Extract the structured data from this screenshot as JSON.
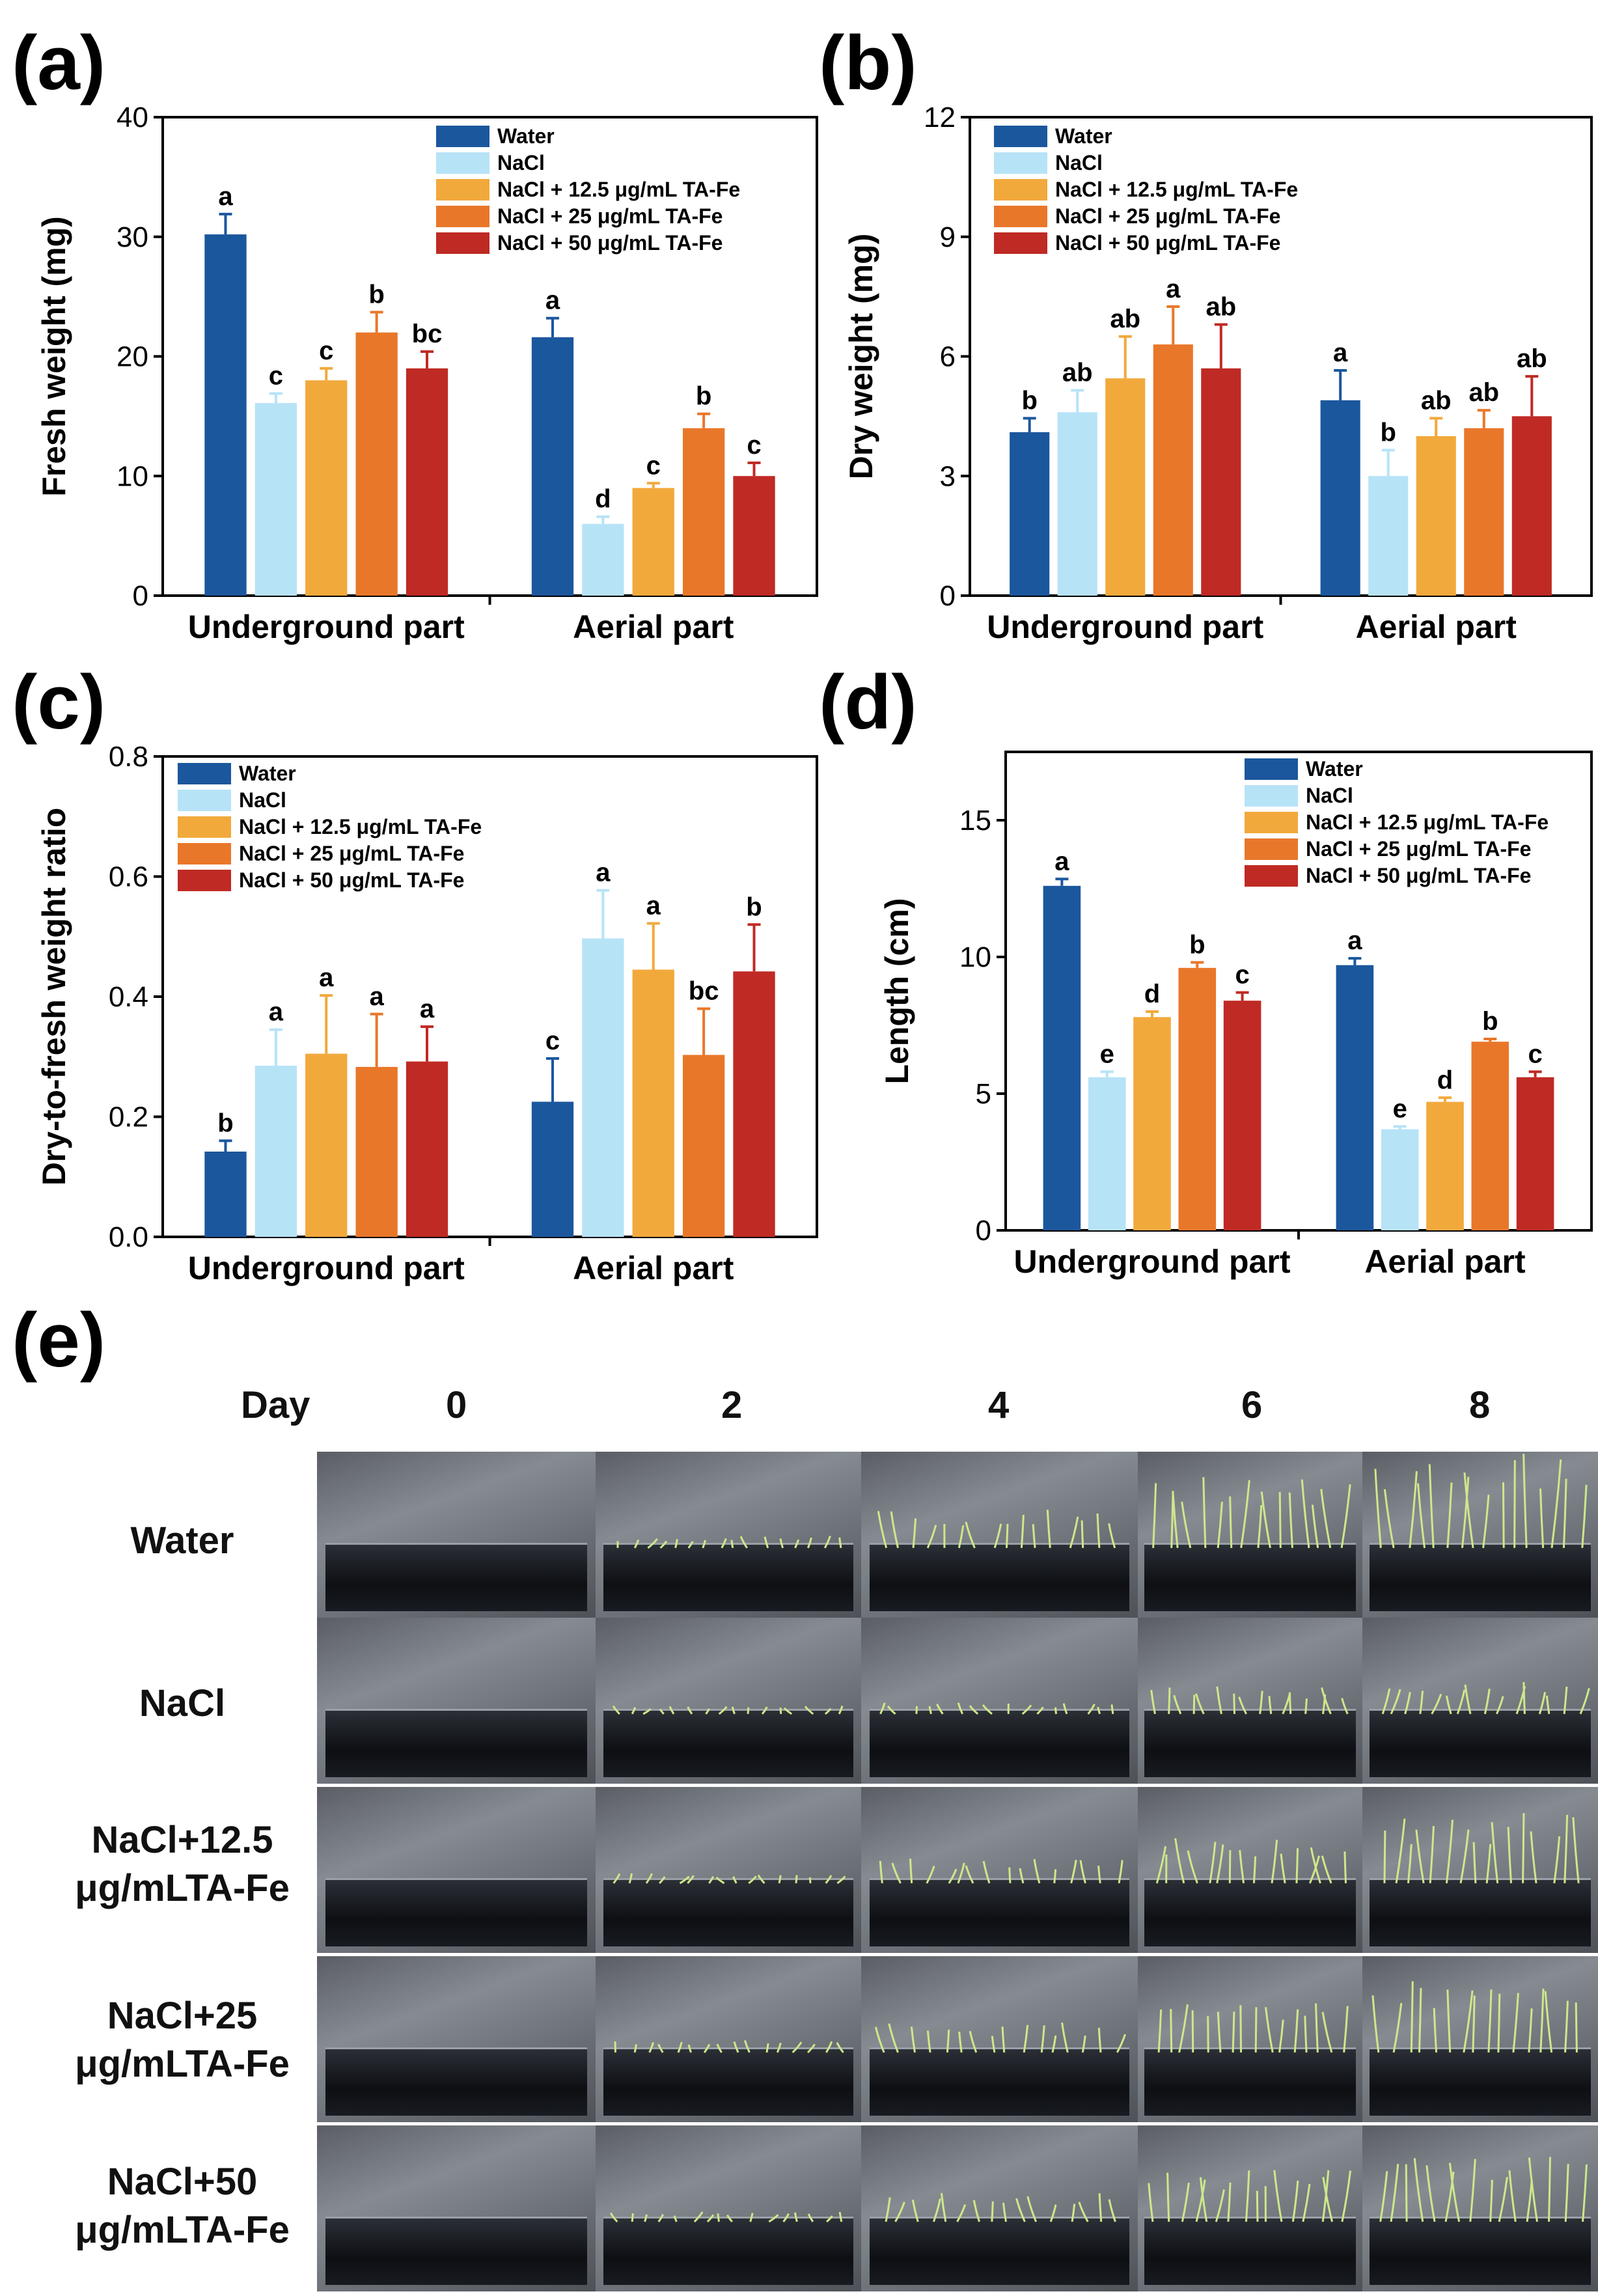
{
  "panel_labels": [
    "(a)",
    "(b)",
    "(c)",
    "(d)",
    "(e)"
  ],
  "legend": [
    {
      "name": "Water",
      "color": "#1b579d"
    },
    {
      "name": "NaCl",
      "color": "#b7e3f7"
    },
    {
      "name": "NaCl + 12.5 μg/mL TA-Fe",
      "color": "#f2a93c"
    },
    {
      "name": "NaCl + 25 μg/mL TA-Fe",
      "color": "#e9772a"
    },
    {
      "name": "NaCl + 50 μg/mL TA-Fe",
      "color": "#bf2a24"
    }
  ],
  "chart_data": [
    {
      "panel": "(a)",
      "type": "bar",
      "ylabel": "Fresh weight (mg)",
      "xlabel": "",
      "categories": [
        "Underground part",
        "Aerial part"
      ],
      "ylim": [
        0,
        40
      ],
      "yticks": [
        0,
        10,
        20,
        30,
        40
      ],
      "series": [
        {
          "name": "Water",
          "values": [
            30.2,
            21.6
          ],
          "errors": [
            1.7,
            1.6
          ],
          "letters": [
            "a",
            "a"
          ]
        },
        {
          "name": "NaCl",
          "values": [
            16.1,
            6.0
          ],
          "errors": [
            0.8,
            0.6
          ],
          "letters": [
            "c",
            "d"
          ]
        },
        {
          "name": "NaCl + 12.5 μg/mL TA-Fe",
          "values": [
            18.0,
            9.0
          ],
          "errors": [
            1.0,
            0.4
          ],
          "letters": [
            "c",
            "c"
          ]
        },
        {
          "name": "NaCl + 25 μg/mL TA-Fe",
          "values": [
            22.0,
            14.0
          ],
          "errors": [
            1.7,
            1.2
          ],
          "letters": [
            "b",
            "b"
          ]
        },
        {
          "name": "NaCl + 50 μg/mL TA-Fe",
          "values": [
            19.0,
            10.0
          ],
          "errors": [
            1.4,
            1.1
          ],
          "letters": [
            "bc",
            "c"
          ]
        }
      ]
    },
    {
      "panel": "(b)",
      "type": "bar",
      "ylabel": "Dry weight (mg)",
      "xlabel": "",
      "categories": [
        "Underground part",
        "Aerial part"
      ],
      "ylim": [
        0,
        12
      ],
      "yticks": [
        0,
        3,
        6,
        9,
        12
      ],
      "series": [
        {
          "name": "Water",
          "values": [
            4.1,
            4.9
          ],
          "errors": [
            0.35,
            0.75
          ],
          "letters": [
            "b",
            "a"
          ]
        },
        {
          "name": "NaCl",
          "values": [
            4.6,
            3.0
          ],
          "errors": [
            0.55,
            0.65
          ],
          "letters": [
            "ab",
            "b"
          ]
        },
        {
          "name": "NaCl + 12.5 μg/mL TA-Fe",
          "values": [
            5.45,
            4.0
          ],
          "errors": [
            1.05,
            0.45
          ],
          "letters": [
            "ab",
            "ab"
          ]
        },
        {
          "name": "NaCl + 25 μg/mL TA-Fe",
          "values": [
            6.3,
            4.2
          ],
          "errors": [
            0.95,
            0.45
          ],
          "letters": [
            "a",
            "ab"
          ]
        },
        {
          "name": "NaCl + 50 μg/mL TA-Fe",
          "values": [
            5.7,
            4.5
          ],
          "errors": [
            1.1,
            1.0
          ],
          "letters": [
            "ab",
            "ab"
          ]
        }
      ]
    },
    {
      "panel": "(c)",
      "type": "bar",
      "ylabel": "Dry-to-fresh weight ratio",
      "xlabel": "",
      "categories": [
        "Underground part",
        "Aerial part"
      ],
      "ylim": [
        0,
        0.8
      ],
      "yticks": [
        0.0,
        0.2,
        0.4,
        0.6,
        0.8
      ],
      "series": [
        {
          "name": "Water",
          "values": [
            0.142,
            0.225
          ],
          "errors": [
            0.018,
            0.072
          ],
          "letters": [
            "b",
            "c"
          ]
        },
        {
          "name": "NaCl",
          "values": [
            0.285,
            0.497
          ],
          "errors": [
            0.06,
            0.08
          ],
          "letters": [
            "a",
            "a"
          ]
        },
        {
          "name": "NaCl + 12.5 μg/mL TA-Fe",
          "values": [
            0.305,
            0.445
          ],
          "errors": [
            0.097,
            0.077
          ],
          "letters": [
            "a",
            "a"
          ]
        },
        {
          "name": "NaCl + 25 μg/mL TA-Fe",
          "values": [
            0.283,
            0.303
          ],
          "errors": [
            0.088,
            0.077
          ],
          "letters": [
            "a",
            "bc"
          ]
        },
        {
          "name": "NaCl + 50 μg/mL TA-Fe",
          "values": [
            0.292,
            0.442
          ],
          "errors": [
            0.058,
            0.078
          ],
          "letters": [
            "a",
            "b"
          ]
        }
      ]
    },
    {
      "panel": "(d)",
      "type": "bar",
      "ylabel": "Length (cm)",
      "xlabel": "",
      "categories": [
        "Underground part",
        "Aerial part"
      ],
      "ylim": [
        0,
        17.5
      ],
      "yticks": [
        0,
        5,
        10,
        15
      ],
      "series": [
        {
          "name": "Water",
          "values": [
            12.6,
            9.7
          ],
          "errors": [
            0.25,
            0.25
          ],
          "letters": [
            "a",
            "a"
          ]
        },
        {
          "name": "NaCl",
          "values": [
            5.6,
            3.7
          ],
          "errors": [
            0.2,
            0.1
          ],
          "letters": [
            "e",
            "e"
          ]
        },
        {
          "name": "NaCl + 12.5 μg/mL TA-Fe",
          "values": [
            7.8,
            4.7
          ],
          "errors": [
            0.2,
            0.15
          ],
          "letters": [
            "d",
            "d"
          ]
        },
        {
          "name": "NaCl + 25 μg/mL TA-Fe",
          "values": [
            9.6,
            6.9
          ],
          "errors": [
            0.2,
            0.1
          ],
          "letters": [
            "b",
            "b"
          ]
        },
        {
          "name": "NaCl + 50 μg/mL TA-Fe",
          "values": [
            8.4,
            5.6
          ],
          "errors": [
            0.3,
            0.2
          ],
          "letters": [
            "c",
            "c"
          ]
        }
      ]
    }
  ],
  "photo_grid": {
    "header": "Day",
    "days": [
      "0",
      "2",
      "4",
      "6",
      "8"
    ],
    "rows": [
      {
        "label_lines": [
          "Water"
        ]
      },
      {
        "label_lines": [
          "NaCl"
        ]
      },
      {
        "label_lines": [
          "NaCl+12.5",
          "μg/mLTA-Fe"
        ]
      },
      {
        "label_lines": [
          "NaCl+25",
          "μg/mLTA-Fe"
        ]
      },
      {
        "label_lines": [
          "NaCl+50",
          "μg/mLTA-Fe"
        ]
      }
    ],
    "seedling_growth": [
      [
        0.0,
        0.12,
        0.38,
        0.72,
        0.95
      ],
      [
        0.0,
        0.08,
        0.12,
        0.28,
        0.32
      ],
      [
        0.0,
        0.1,
        0.25,
        0.45,
        0.7
      ],
      [
        0.0,
        0.12,
        0.3,
        0.55,
        0.8
      ],
      [
        0.0,
        0.1,
        0.3,
        0.52,
        0.75
      ]
    ]
  }
}
